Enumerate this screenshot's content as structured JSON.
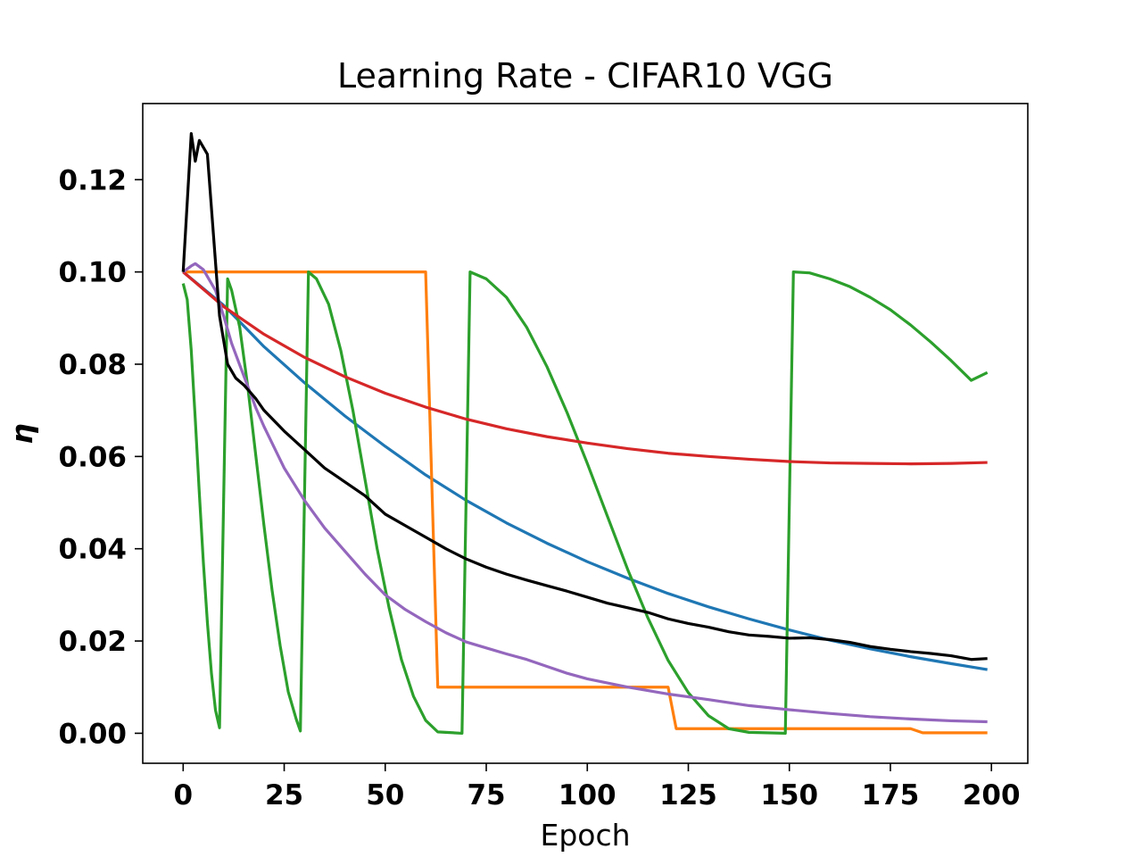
{
  "chart_data": {
    "type": "line",
    "title": "Learning Rate - CIFAR10 VGG",
    "xlabel": "Epoch",
    "ylabel": "η",
    "xlim": [
      -10,
      209
    ],
    "ylim": [
      -0.0065,
      0.1365
    ],
    "xticks": [
      0,
      25,
      50,
      75,
      100,
      125,
      150,
      175,
      200
    ],
    "xtick_labels": [
      "0",
      "25",
      "50",
      "75",
      "100",
      "125",
      "150",
      "175",
      "200"
    ],
    "yticks": [
      0.0,
      0.02,
      0.04,
      0.06,
      0.08,
      0.1,
      0.12
    ],
    "ytick_labels": [
      "0.00",
      "0.02",
      "0.04",
      "0.06",
      "0.08",
      "0.10",
      "0.12"
    ],
    "grid": false,
    "legend": "none",
    "series": [
      {
        "color": "#1f77b4",
        "points": [
          [
            0,
            0.1
          ],
          [
            10,
            0.0928
          ],
          [
            20,
            0.0838
          ],
          [
            30,
            0.076
          ],
          [
            40,
            0.0688
          ],
          [
            50,
            0.0622
          ],
          [
            60,
            0.056
          ],
          [
            70,
            0.0505
          ],
          [
            80,
            0.0456
          ],
          [
            90,
            0.0412
          ],
          [
            100,
            0.0372
          ],
          [
            110,
            0.0336
          ],
          [
            120,
            0.0303
          ],
          [
            130,
            0.0274
          ],
          [
            140,
            0.0248
          ],
          [
            150,
            0.0224
          ],
          [
            160,
            0.0202
          ],
          [
            170,
            0.0183
          ],
          [
            180,
            0.0166
          ],
          [
            190,
            0.0151
          ],
          [
            199,
            0.0138
          ]
        ]
      },
      {
        "color": "#ff7f0e",
        "points": [
          [
            0,
            0.1
          ],
          [
            60,
            0.1
          ],
          [
            63,
            0.01
          ],
          [
            120,
            0.01
          ],
          [
            122,
            0.001
          ],
          [
            180,
            0.001
          ],
          [
            183,
            0.0001
          ],
          [
            199,
            0.0001
          ]
        ]
      },
      {
        "color": "#2ca02c",
        "points": [
          [
            0,
            0.0975
          ],
          [
            1,
            0.094
          ],
          [
            2,
            0.083
          ],
          [
            3,
            0.068
          ],
          [
            4,
            0.052
          ],
          [
            5,
            0.037
          ],
          [
            6,
            0.024
          ],
          [
            7,
            0.013
          ],
          [
            8,
            0.005
          ],
          [
            9,
            0.0012
          ],
          [
            11,
            0.0985
          ],
          [
            12,
            0.096
          ],
          [
            14,
            0.088
          ],
          [
            16,
            0.075
          ],
          [
            18,
            0.06
          ],
          [
            20,
            0.045
          ],
          [
            22,
            0.031
          ],
          [
            24,
            0.019
          ],
          [
            26,
            0.009
          ],
          [
            28,
            0.003
          ],
          [
            29,
            0.0005
          ],
          [
            31,
            0.1
          ],
          [
            33,
            0.0985
          ],
          [
            36,
            0.093
          ],
          [
            39,
            0.083
          ],
          [
            42,
            0.07
          ],
          [
            45,
            0.055
          ],
          [
            48,
            0.04
          ],
          [
            51,
            0.027
          ],
          [
            54,
            0.016
          ],
          [
            57,
            0.008
          ],
          [
            60,
            0.0028
          ],
          [
            63,
            0.0003
          ],
          [
            69,
            0.0
          ],
          [
            71,
            0.1
          ],
          [
            75,
            0.0985
          ],
          [
            80,
            0.0945
          ],
          [
            85,
            0.088
          ],
          [
            90,
            0.0795
          ],
          [
            95,
            0.0695
          ],
          [
            100,
            0.0585
          ],
          [
            105,
            0.047
          ],
          [
            110,
            0.0355
          ],
          [
            115,
            0.025
          ],
          [
            120,
            0.0158
          ],
          [
            125,
            0.0088
          ],
          [
            130,
            0.0038
          ],
          [
            135,
            0.001
          ],
          [
            140,
            0.0002
          ],
          [
            149,
            0.0
          ],
          [
            151,
            0.1
          ],
          [
            155,
            0.0998
          ],
          [
            160,
            0.0985
          ],
          [
            165,
            0.0968
          ],
          [
            170,
            0.0945
          ],
          [
            175,
            0.0918
          ],
          [
            180,
            0.0885
          ],
          [
            185,
            0.0848
          ],
          [
            190,
            0.0808
          ],
          [
            195,
            0.0765
          ],
          [
            199,
            0.0782
          ]
        ]
      },
      {
        "color": "#d62728",
        "points": [
          [
            0,
            0.1
          ],
          [
            10,
            0.0925
          ],
          [
            20,
            0.0865
          ],
          [
            30,
            0.0815
          ],
          [
            40,
            0.0773
          ],
          [
            50,
            0.0737
          ],
          [
            60,
            0.0707
          ],
          [
            70,
            0.0681
          ],
          [
            80,
            0.066
          ],
          [
            90,
            0.0643
          ],
          [
            100,
            0.0629
          ],
          [
            110,
            0.0617
          ],
          [
            120,
            0.0607
          ],
          [
            130,
            0.06
          ],
          [
            140,
            0.0594
          ],
          [
            150,
            0.0589
          ],
          [
            160,
            0.0586
          ],
          [
            170,
            0.0585
          ],
          [
            180,
            0.0584
          ],
          [
            190,
            0.0585
          ],
          [
            199,
            0.0587
          ]
        ]
      },
      {
        "color": "#9467bd",
        "points": [
          [
            0,
            0.1
          ],
          [
            2,
            0.1013
          ],
          [
            3,
            0.1018
          ],
          [
            5,
            0.1005
          ],
          [
            8,
            0.096
          ],
          [
            10,
            0.0905
          ],
          [
            12,
            0.0845
          ],
          [
            15,
            0.0775
          ],
          [
            18,
            0.0705
          ],
          [
            20,
            0.0665
          ],
          [
            25,
            0.0575
          ],
          [
            30,
            0.0505
          ],
          [
            35,
            0.0445
          ],
          [
            40,
            0.0395
          ],
          [
            45,
            0.0345
          ],
          [
            50,
            0.03
          ],
          [
            55,
            0.0268
          ],
          [
            60,
            0.0242
          ],
          [
            65,
            0.0218
          ],
          [
            70,
            0.0198
          ],
          [
            75,
            0.0185
          ],
          [
            80,
            0.0172
          ],
          [
            85,
            0.016
          ],
          [
            90,
            0.0145
          ],
          [
            95,
            0.013
          ],
          [
            100,
            0.0118
          ],
          [
            110,
            0.01
          ],
          [
            120,
            0.0085
          ],
          [
            130,
            0.0073
          ],
          [
            140,
            0.006
          ],
          [
            150,
            0.0051
          ],
          [
            160,
            0.0043
          ],
          [
            170,
            0.0036
          ],
          [
            180,
            0.0031
          ],
          [
            190,
            0.0027
          ],
          [
            199,
            0.0025
          ]
        ]
      },
      {
        "color": "#000000",
        "points": [
          [
            0,
            0.1
          ],
          [
            2,
            0.13
          ],
          [
            3,
            0.124
          ],
          [
            4,
            0.1285
          ],
          [
            5,
            0.127
          ],
          [
            6,
            0.1255
          ],
          [
            9,
            0.0905
          ],
          [
            11,
            0.08
          ],
          [
            13,
            0.077
          ],
          [
            15,
            0.0755
          ],
          [
            18,
            0.0725
          ],
          [
            20,
            0.07
          ],
          [
            25,
            0.0655
          ],
          [
            30,
            0.0615
          ],
          [
            35,
            0.0575
          ],
          [
            40,
            0.0545
          ],
          [
            45,
            0.0515
          ],
          [
            50,
            0.0475
          ],
          [
            55,
            0.045
          ],
          [
            60,
            0.0425
          ],
          [
            65,
            0.04
          ],
          [
            70,
            0.0378
          ],
          [
            75,
            0.036
          ],
          [
            80,
            0.0345
          ],
          [
            85,
            0.0332
          ],
          [
            90,
            0.032
          ],
          [
            95,
            0.0308
          ],
          [
            100,
            0.0295
          ],
          [
            105,
            0.0282
          ],
          [
            110,
            0.0272
          ],
          [
            115,
            0.0262
          ],
          [
            120,
            0.0248
          ],
          [
            125,
            0.0238
          ],
          [
            130,
            0.023
          ],
          [
            135,
            0.022
          ],
          [
            140,
            0.0213
          ],
          [
            145,
            0.021
          ],
          [
            150,
            0.0206
          ],
          [
            155,
            0.0207
          ],
          [
            160,
            0.0203
          ],
          [
            165,
            0.0197
          ],
          [
            170,
            0.0188
          ],
          [
            175,
            0.0182
          ],
          [
            180,
            0.0177
          ],
          [
            185,
            0.0173
          ],
          [
            190,
            0.0168
          ],
          [
            195,
            0.016
          ],
          [
            199,
            0.0162
          ]
        ]
      }
    ]
  }
}
